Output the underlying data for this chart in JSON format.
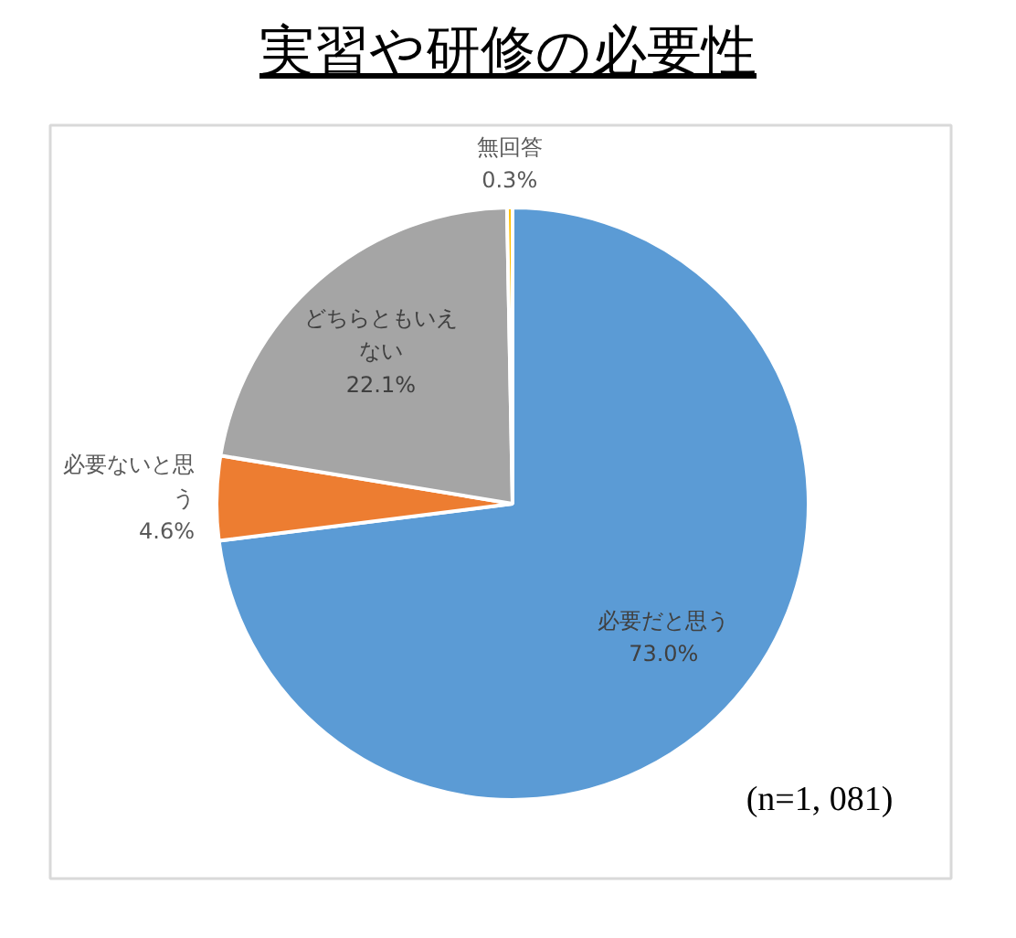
{
  "chart_data": {
    "type": "pie",
    "title": "実習や研修の必要性",
    "categories": [
      "必要だと思う",
      "必要ないと思う",
      "どちらともいえない",
      "無回答"
    ],
    "values": [
      73.0,
      4.6,
      22.1,
      0.3
    ],
    "value_labels": [
      "73.0%",
      "4.6%",
      "22.1%",
      "0.3%"
    ],
    "colors": [
      "#5b9bd5",
      "#ed7d31",
      "#a5a5a5",
      "#ffc000"
    ],
    "annotations": [
      "(n=1, 081)"
    ]
  }
}
